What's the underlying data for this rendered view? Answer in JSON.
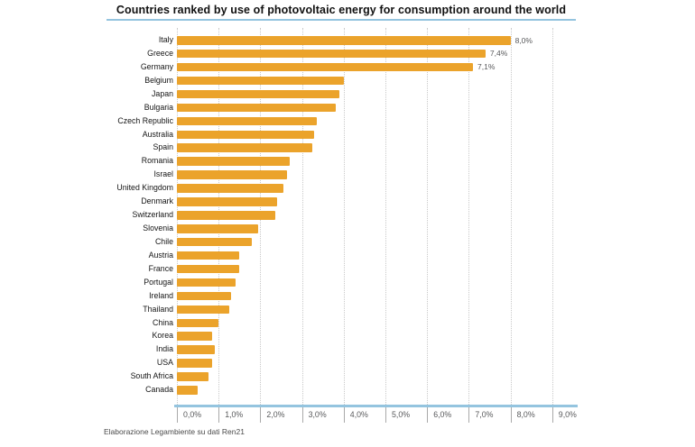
{
  "title": "Countries ranked by use of photovoltaic energy for consumption around the world",
  "source_note": "Elaborazione Legambiente su dati Ren21",
  "colors": {
    "bar": "#EBA32B",
    "accent_line": "#94C4DF",
    "gridline": "#c9c9c9",
    "value_label": "#58595b"
  },
  "chart_data": {
    "type": "bar",
    "orientation": "horizontal",
    "title": "Countries ranked by use of photovoltaic energy for consumption around the world",
    "categories": [
      "Italy",
      "Greece",
      "Germany",
      "Belgium",
      "Japan",
      "Bulgaria",
      "Czech Republic",
      "Australia",
      "Spain",
      "Romania",
      "Israel",
      "United Kingdom",
      "Denmark",
      "Switzerland",
      "Slovenia",
      "Chile",
      "Austria",
      "France",
      "Portugal",
      "Ireland",
      "Thailand",
      "China",
      "Korea",
      "India",
      "USA",
      "South Africa",
      "Canada"
    ],
    "values": [
      8.0,
      7.4,
      7.1,
      4.0,
      3.9,
      3.8,
      3.35,
      3.3,
      3.25,
      2.7,
      2.65,
      2.55,
      2.4,
      2.35,
      1.95,
      1.8,
      1.5,
      1.5,
      1.4,
      1.3,
      1.25,
      1.0,
      0.85,
      0.9,
      0.85,
      0.75,
      0.5
    ],
    "value_labels": [
      "8,0%",
      "7,4%",
      "7,1%",
      "",
      "",
      "",
      "",
      "",
      "",
      "",
      "",
      "",
      "",
      "",
      "",
      "",
      "",
      "",
      "",
      "",
      "",
      "",
      "",
      "",
      "",
      "",
      ""
    ],
    "x_tick_labels": [
      "0,0%",
      "1,0%",
      "2,0%",
      "3,0%",
      "4,0%",
      "5,0%",
      "6,0%",
      "7,0%",
      "8,0%",
      "9,0%"
    ],
    "x_tick_values": [
      0,
      1,
      2,
      3,
      4,
      5,
      6,
      7,
      8,
      9
    ],
    "xlim": [
      0,
      9.6
    ],
    "unit": "%",
    "grid": "vertical-dotted",
    "legend": "none",
    "source": "Elaborazione Legambiente su dati Ren21"
  }
}
